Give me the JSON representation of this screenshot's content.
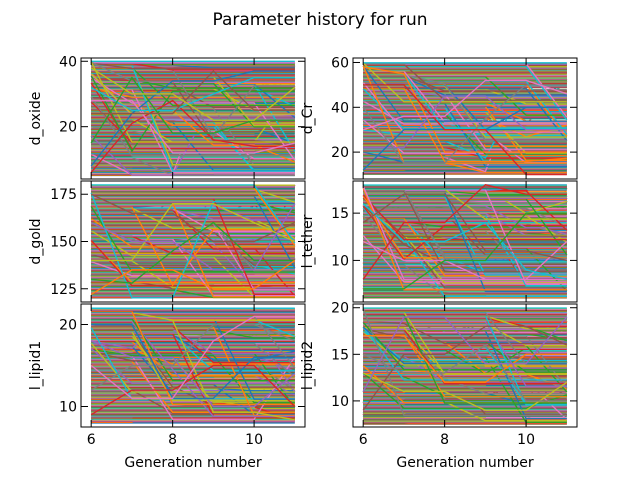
{
  "chart_data": {
    "title": "Parameter history for run",
    "type": "line",
    "palette": [
      "#1f77b4",
      "#ff7f0e",
      "#2ca02c",
      "#d62728",
      "#9467bd",
      "#8c564b",
      "#e377c2",
      "#7f7f7f",
      "#bcbd22",
      "#17becf"
    ],
    "x": [
      6,
      7,
      8,
      9,
      10,
      11
    ],
    "xlim": [
      5.75,
      11.25
    ],
    "series_per_panel_estimate": 300,
    "panels": [
      {
        "ylabel": "d_oxide",
        "xlabel": "",
        "ylim": [
          4,
          41
        ],
        "value_range": [
          5,
          40
        ],
        "yticks": [
          20,
          40
        ],
        "ytick_labels": [
          "20",
          "40"
        ],
        "xticks": [
          6,
          8,
          10
        ],
        "xtick_labels": [],
        "dense_lines": [
          {
            "values": [
              8,
              24,
              34,
              34,
              37,
              37
            ]
          },
          {
            "values": [
              6,
              21,
              28,
              16,
              14,
              14
            ]
          },
          {
            "values": [
              28,
              28,
              12,
              12,
              12,
              15
            ]
          },
          {
            "values": [
              32,
              25,
              25,
              30,
              35,
              35
            ]
          },
          {
            "values": [
              15,
              35,
              18,
              18,
              22,
              22
            ]
          },
          {
            "values": [
              24,
              24,
              24,
              37,
              25,
              25
            ]
          },
          {
            "values": [
              38,
              30,
              30,
              22,
              22,
              32
            ]
          }
        ]
      },
      {
        "ylabel": "d_Cr",
        "xlabel": "",
        "ylim": [
          8,
          62
        ],
        "value_range": [
          10,
          60
        ],
        "yticks": [
          20,
          40,
          60
        ],
        "ytick_labels": [
          "20",
          "40",
          "60"
        ],
        "xticks": [
          6,
          8,
          10
        ],
        "xtick_labels": [],
        "dense_lines": [
          {
            "values": [
              58,
              55,
              20,
              20,
              20,
              20
            ]
          },
          {
            "values": [
              22,
              22,
              45,
              45,
              30,
              30
            ]
          },
          {
            "values": [
              40,
              15,
              15,
              35,
              50,
              50
            ]
          },
          {
            "values": [
              12,
              30,
              30,
              30,
              40,
              40
            ]
          },
          {
            "values": [
              50,
              50,
              30,
              30,
              10,
              10
            ]
          },
          {
            "values": [
              30,
              36,
              36,
              52,
              52,
              46
            ]
          }
        ]
      },
      {
        "ylabel": "d_gold",
        "xlabel": "",
        "ylim": [
          118,
          182
        ],
        "value_range": [
          120,
          180
        ],
        "yticks": [
          125,
          150,
          175
        ],
        "ytick_labels": [
          "125",
          "150",
          "175"
        ],
        "xticks": [
          6,
          8,
          10
        ],
        "xtick_labels": [],
        "dense_lines": [
          {
            "values": [
              130,
              128,
              145,
              160,
              140,
              140
            ]
          },
          {
            "values": [
              175,
              165,
              165,
              150,
              150,
              160
            ]
          },
          {
            "values": [
              140,
              140,
              170,
              170,
              160,
              150
            ]
          },
          {
            "values": [
              122,
              135,
              135,
              125,
              125,
              140
            ]
          },
          {
            "values": [
              160,
              150,
              150,
              135,
              135,
              170
            ]
          }
        ]
      },
      {
        "ylabel": "l_tether",
        "xlabel": "",
        "ylim": [
          5.6,
          18.4
        ],
        "value_range": [
          6,
          18
        ],
        "yticks": [
          10,
          15
        ],
        "ytick_labels": [
          "10",
          "15"
        ],
        "xticks": [
          6,
          8,
          10
        ],
        "xtick_labels": [],
        "dense_lines": [
          {
            "values": [
              8,
              14,
              14,
              18,
              17,
              17
            ]
          },
          {
            "values": [
              12,
              10,
              10,
              8,
              8,
              12
            ]
          },
          {
            "values": [
              16,
              12,
              12,
              14,
              9,
              8
            ]
          },
          {
            "values": [
              7,
              7,
              10,
              10,
              15,
              15
            ]
          },
          {
            "values": [
              14,
              17,
              17,
              11,
              11,
              10
            ]
          }
        ]
      },
      {
        "ylabel": "l_lipid1",
        "xlabel": "Generation number",
        "ylim": [
          7.5,
          22.5
        ],
        "value_range": [
          8,
          22
        ],
        "yticks": [
          10,
          20
        ],
        "ytick_labels": [
          "10",
          "20"
        ],
        "xticks": [
          6,
          8,
          10
        ],
        "xtick_labels": [
          "6",
          "8",
          "10"
        ],
        "dense_lines": [
          {
            "values": [
              18,
              16,
              16,
              10,
              10,
              14
            ]
          },
          {
            "values": [
              12,
              15,
              15,
              20,
              20,
              18
            ]
          },
          {
            "values": [
              20,
              20,
              11,
              11,
              16,
              16
            ]
          },
          {
            "values": [
              9,
              12,
              12,
              15,
              15,
              10
            ]
          },
          {
            "values": [
              15,
              11,
              11,
              18,
              21,
              21
            ]
          }
        ]
      },
      {
        "ylabel": "l_lipid2",
        "xlabel": "Generation number",
        "ylim": [
          7.2,
          20.4
        ],
        "value_range": [
          7.5,
          20
        ],
        "yticks": [
          10,
          15,
          20
        ],
        "ytick_labels": [
          "10",
          "15",
          "20"
        ],
        "xticks": [
          6,
          8,
          10
        ],
        "xtick_labels": [
          "6",
          "8",
          "10"
        ],
        "dense_lines": [
          {
            "values": [
              9,
              15,
              15,
              18,
              18,
              16
            ]
          },
          {
            "values": [
              13,
              11,
              11,
              9,
              9,
              12
            ]
          },
          {
            "values": [
              17,
              17,
              12,
              12,
              15,
              15
            ]
          },
          {
            "values": [
              11,
              19,
              19,
              14,
              14,
              19
            ]
          },
          {
            "values": [
              15,
              13,
              13,
              16,
              10,
              10
            ]
          }
        ]
      }
    ]
  }
}
